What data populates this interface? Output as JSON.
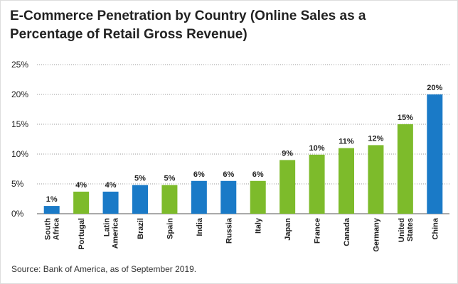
{
  "chart_data": {
    "type": "bar",
    "title": "E-Commerce Penetration by Country (Online Sales as a Percentage of Retail Gross Revenue)",
    "source": "Source: Bank of America, as of September 2019.",
    "categories": [
      "South Africa",
      "Portugal",
      "Latin America",
      "Brazil",
      "Spain",
      "India",
      "Russia",
      "Italy",
      "Japan",
      "France",
      "Canada",
      "Germany",
      "United States",
      "China"
    ],
    "values": [
      1.3,
      3.7,
      3.7,
      4.8,
      4.8,
      5.5,
      5.5,
      5.5,
      9,
      9.9,
      11,
      11.5,
      15,
      20
    ],
    "value_labels": [
      "1%",
      "4%",
      "4%",
      "5%",
      "5%",
      "6%",
      "6%",
      "6%",
      "9%",
      "10%",
      "11%",
      "12%",
      "15%",
      "20%"
    ],
    "colors": [
      "#1a7ac7",
      "#7dbb2b",
      "#1a7ac7",
      "#1a7ac7",
      "#7dbb2b",
      "#1a7ac7",
      "#1a7ac7",
      "#7dbb2b",
      "#7dbb2b",
      "#7dbb2b",
      "#7dbb2b",
      "#7dbb2b",
      "#7dbb2b",
      "#1a7ac7"
    ],
    "ylim": [
      0,
      25
    ],
    "yticks": [
      {
        "value": 0,
        "label": "0%"
      },
      {
        "value": 5,
        "label": "5%"
      },
      {
        "value": 10,
        "label": "10%"
      },
      {
        "value": 15,
        "label": "15%"
      },
      {
        "value": 20,
        "label": "20%"
      },
      {
        "value": 25,
        "label": "25%"
      }
    ],
    "grid": true
  }
}
